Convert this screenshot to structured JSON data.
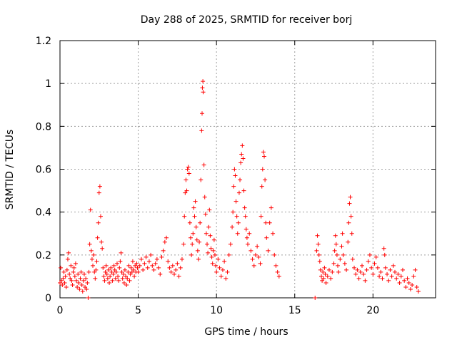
{
  "chart_data": {
    "type": "scatter",
    "title": "Day 288 of 2025, SRMTID for receiver borj",
    "xlabel": "GPS time / hours",
    "ylabel": "SRMTID / TECUs",
    "xlim": [
      0,
      24
    ],
    "ylim": [
      0,
      1.2
    ],
    "x_ticks": [
      0,
      5,
      10,
      15,
      20
    ],
    "x_tick_labels": [
      "0",
      "5",
      "10",
      "15",
      "20"
    ],
    "y_ticks": [
      0,
      0.2,
      0.4,
      0.6,
      0.8,
      1.0,
      1.2
    ],
    "y_tick_labels": [
      "0",
      "0.2",
      "0.4",
      "0.6",
      "0.8",
      "1",
      "1.2"
    ],
    "grid": true,
    "marker": "+",
    "color": "#ff0000",
    "series": [
      {
        "name": "SRMTID",
        "points": [
          [
            0.0,
            0.07
          ],
          [
            0.05,
            0.14
          ],
          [
            0.1,
            0.08
          ],
          [
            0.15,
            0.06
          ],
          [
            0.2,
            0.09
          ],
          [
            0.25,
            0.12
          ],
          [
            0.3,
            0.07
          ],
          [
            0.35,
            0.1
          ],
          [
            0.4,
            0.05
          ],
          [
            0.45,
            0.13
          ],
          [
            0.5,
            0.18
          ],
          [
            0.55,
            0.21
          ],
          [
            0.6,
            0.11
          ],
          [
            0.65,
            0.09
          ],
          [
            0.7,
            0.15
          ],
          [
            0.75,
            0.08
          ],
          [
            0.8,
            0.06
          ],
          [
            0.85,
            0.12
          ],
          [
            0.9,
            0.14
          ],
          [
            0.95,
            0.1
          ],
          [
            1.0,
            0.16
          ],
          [
            1.05,
            0.08
          ],
          [
            1.1,
            0.05
          ],
          [
            1.15,
            0.11
          ],
          [
            1.2,
            0.07
          ],
          [
            1.25,
            0.04
          ],
          [
            1.3,
            0.09
          ],
          [
            1.35,
            0.12
          ],
          [
            1.4,
            0.06
          ],
          [
            1.45,
            0.03
          ],
          [
            1.5,
            0.08
          ],
          [
            1.55,
            0.11
          ],
          [
            1.6,
            0.05
          ],
          [
            1.65,
            0.09
          ],
          [
            1.7,
            0.04
          ],
          [
            1.75,
            0.07
          ],
          [
            1.8,
            0.0
          ],
          [
            1.85,
            0.12
          ],
          [
            1.9,
            0.25
          ],
          [
            1.95,
            0.41
          ],
          [
            2.0,
            0.22
          ],
          [
            2.05,
            0.18
          ],
          [
            2.1,
            0.15
          ],
          [
            2.15,
            0.2
          ],
          [
            2.2,
            0.12
          ],
          [
            2.25,
            0.09
          ],
          [
            2.3,
            0.13
          ],
          [
            2.35,
            0.17
          ],
          [
            2.4,
            0.28
          ],
          [
            2.45,
            0.35
          ],
          [
            2.5,
            0.49
          ],
          [
            2.55,
            0.52
          ],
          [
            2.6,
            0.38
          ],
          [
            2.65,
            0.26
          ],
          [
            2.7,
            0.23
          ],
          [
            2.75,
            0.14
          ],
          [
            2.8,
            0.1
          ],
          [
            2.85,
            0.08
          ],
          [
            2.9,
            0.12
          ],
          [
            2.95,
            0.15
          ],
          [
            3.0,
            0.11
          ],
          [
            3.05,
            0.09
          ],
          [
            3.1,
            0.13
          ],
          [
            3.15,
            0.07
          ],
          [
            3.2,
            0.1
          ],
          [
            3.25,
            0.14
          ],
          [
            3.3,
            0.12
          ],
          [
            3.35,
            0.08
          ],
          [
            3.4,
            0.11
          ],
          [
            3.45,
            0.15
          ],
          [
            3.5,
            0.13
          ],
          [
            3.55,
            0.09
          ],
          [
            3.6,
            0.12
          ],
          [
            3.65,
            0.16
          ],
          [
            3.7,
            0.1
          ],
          [
            3.75,
            0.08
          ],
          [
            3.8,
            0.14
          ],
          [
            3.85,
            0.17
          ],
          [
            3.9,
            0.21
          ],
          [
            3.95,
            0.12
          ],
          [
            4.0,
            0.09
          ],
          [
            4.05,
            0.11
          ],
          [
            4.1,
            0.07
          ],
          [
            4.15,
            0.13
          ],
          [
            4.2,
            0.1
          ],
          [
            4.25,
            0.06
          ],
          [
            4.3,
            0.09
          ],
          [
            4.35,
            0.12
          ],
          [
            4.4,
            0.15
          ],
          [
            4.45,
            0.08
          ],
          [
            4.5,
            0.11
          ],
          [
            4.55,
            0.14
          ],
          [
            4.6,
            0.12
          ],
          [
            4.65,
            0.17
          ],
          [
            4.7,
            0.13
          ],
          [
            4.75,
            0.1
          ],
          [
            4.8,
            0.15
          ],
          [
            4.85,
            0.12
          ],
          [
            4.9,
            0.16
          ],
          [
            4.95,
            0.14
          ],
          [
            5.0,
            0.12
          ],
          [
            5.1,
            0.15
          ],
          [
            5.2,
            0.18
          ],
          [
            5.3,
            0.13
          ],
          [
            5.4,
            0.16
          ],
          [
            5.5,
            0.19
          ],
          [
            5.6,
            0.14
          ],
          [
            5.7,
            0.17
          ],
          [
            5.8,
            0.2
          ],
          [
            5.9,
            0.15
          ],
          [
            6.0,
            0.13
          ],
          [
            6.1,
            0.16
          ],
          [
            6.2,
            0.18
          ],
          [
            6.3,
            0.14
          ],
          [
            6.4,
            0.11
          ],
          [
            6.5,
            0.19
          ],
          [
            6.6,
            0.22
          ],
          [
            6.7,
            0.26
          ],
          [
            6.8,
            0.28
          ],
          [
            6.9,
            0.17
          ],
          [
            7.0,
            0.14
          ],
          [
            7.1,
            0.12
          ],
          [
            7.2,
            0.15
          ],
          [
            7.3,
            0.11
          ],
          [
            7.4,
            0.13
          ],
          [
            7.5,
            0.16
          ],
          [
            7.6,
            0.1
          ],
          [
            7.7,
            0.14
          ],
          [
            7.8,
            0.18
          ],
          [
            7.9,
            0.25
          ],
          [
            7.95,
            0.38
          ],
          [
            8.0,
            0.49
          ],
          [
            8.05,
            0.55
          ],
          [
            8.1,
            0.5
          ],
          [
            8.15,
            0.6
          ],
          [
            8.2,
            0.61
          ],
          [
            8.25,
            0.58
          ],
          [
            8.3,
            0.35
          ],
          [
            8.35,
            0.28
          ],
          [
            8.4,
            0.2
          ],
          [
            8.45,
            0.25
          ],
          [
            8.5,
            0.3
          ],
          [
            8.55,
            0.42
          ],
          [
            8.6,
            0.38
          ],
          [
            8.65,
            0.45
          ],
          [
            8.7,
            0.33
          ],
          [
            8.75,
            0.27
          ],
          [
            8.8,
            0.22
          ],
          [
            8.85,
            0.18
          ],
          [
            8.9,
            0.26
          ],
          [
            8.95,
            0.35
          ],
          [
            9.0,
            0.55
          ],
          [
            9.05,
            0.78
          ],
          [
            9.08,
            0.86
          ],
          [
            9.1,
            0.98
          ],
          [
            9.13,
            1.01
          ],
          [
            9.15,
            0.96
          ],
          [
            9.2,
            0.62
          ],
          [
            9.25,
            0.47
          ],
          [
            9.3,
            0.39
          ],
          [
            9.35,
            0.3
          ],
          [
            9.4,
            0.25
          ],
          [
            9.45,
            0.21
          ],
          [
            9.5,
            0.33
          ],
          [
            9.55,
            0.41
          ],
          [
            9.6,
            0.29
          ],
          [
            9.65,
            0.23
          ],
          [
            9.7,
            0.19
          ],
          [
            9.75,
            0.16
          ],
          [
            9.8,
            0.22
          ],
          [
            9.85,
            0.27
          ],
          [
            9.9,
            0.2
          ],
          [
            9.95,
            0.15
          ],
          [
            10.0,
            0.12
          ],
          [
            10.1,
            0.18
          ],
          [
            10.2,
            0.14
          ],
          [
            10.3,
            0.1
          ],
          [
            10.4,
            0.13
          ],
          [
            10.5,
            0.17
          ],
          [
            10.6,
            0.09
          ],
          [
            10.7,
            0.12
          ],
          [
            10.8,
            0.2
          ],
          [
            10.9,
            0.25
          ],
          [
            11.0,
            0.33
          ],
          [
            11.05,
            0.4
          ],
          [
            11.1,
            0.52
          ],
          [
            11.15,
            0.6
          ],
          [
            11.2,
            0.57
          ],
          [
            11.25,
            0.45
          ],
          [
            11.3,
            0.38
          ],
          [
            11.35,
            0.3
          ],
          [
            11.4,
            0.35
          ],
          [
            11.45,
            0.49
          ],
          [
            11.5,
            0.55
          ],
          [
            11.55,
            0.63
          ],
          [
            11.6,
            0.67
          ],
          [
            11.65,
            0.71
          ],
          [
            11.7,
            0.65
          ],
          [
            11.75,
            0.5
          ],
          [
            11.8,
            0.42
          ],
          [
            11.85,
            0.38
          ],
          [
            11.9,
            0.32
          ],
          [
            11.95,
            0.28
          ],
          [
            12.0,
            0.25
          ],
          [
            12.1,
            0.3
          ],
          [
            12.2,
            0.22
          ],
          [
            12.3,
            0.18
          ],
          [
            12.4,
            0.15
          ],
          [
            12.5,
            0.2
          ],
          [
            12.6,
            0.24
          ],
          [
            12.7,
            0.19
          ],
          [
            12.8,
            0.16
          ],
          [
            12.85,
            0.38
          ],
          [
            12.9,
            0.52
          ],
          [
            12.95,
            0.6
          ],
          [
            13.0,
            0.68
          ],
          [
            13.05,
            0.66
          ],
          [
            13.1,
            0.55
          ],
          [
            13.15,
            0.35
          ],
          [
            13.2,
            0.28
          ],
          [
            13.3,
            0.22
          ],
          [
            13.4,
            0.35
          ],
          [
            13.5,
            0.42
          ],
          [
            13.6,
            0.3
          ],
          [
            13.7,
            0.2
          ],
          [
            13.8,
            0.15
          ],
          [
            13.9,
            0.12
          ],
          [
            14.0,
            0.1
          ],
          [
            16.3,
            0.0
          ],
          [
            16.4,
            0.22
          ],
          [
            16.45,
            0.29
          ],
          [
            16.5,
            0.25
          ],
          [
            16.55,
            0.2
          ],
          [
            16.6,
            0.17
          ],
          [
            16.65,
            0.13
          ],
          [
            16.7,
            0.1
          ],
          [
            16.75,
            0.08
          ],
          [
            16.8,
            0.12
          ],
          [
            16.85,
            0.09
          ],
          [
            16.9,
            0.14
          ],
          [
            16.95,
            0.11
          ],
          [
            17.0,
            0.07
          ],
          [
            17.1,
            0.1
          ],
          [
            17.2,
            0.13
          ],
          [
            17.3,
            0.09
          ],
          [
            17.4,
            0.12
          ],
          [
            17.5,
            0.16
          ],
          [
            17.55,
            0.22
          ],
          [
            17.6,
            0.29
          ],
          [
            17.65,
            0.25
          ],
          [
            17.7,
            0.2
          ],
          [
            17.75,
            0.15
          ],
          [
            17.8,
            0.12
          ],
          [
            17.9,
            0.18
          ],
          [
            18.0,
            0.24
          ],
          [
            18.05,
            0.3
          ],
          [
            18.1,
            0.2
          ],
          [
            18.2,
            0.16
          ],
          [
            18.3,
            0.13
          ],
          [
            18.4,
            0.26
          ],
          [
            18.45,
            0.35
          ],
          [
            18.5,
            0.44
          ],
          [
            18.55,
            0.47
          ],
          [
            18.6,
            0.38
          ],
          [
            18.65,
            0.3
          ],
          [
            18.7,
            0.18
          ],
          [
            18.8,
            0.14
          ],
          [
            18.9,
            0.11
          ],
          [
            19.0,
            0.13
          ],
          [
            19.1,
            0.09
          ],
          [
            19.2,
            0.12
          ],
          [
            19.3,
            0.15
          ],
          [
            19.4,
            0.11
          ],
          [
            19.5,
            0.08
          ],
          [
            19.6,
            0.13
          ],
          [
            19.7,
            0.17
          ],
          [
            19.8,
            0.2
          ],
          [
            19.9,
            0.14
          ],
          [
            20.0,
            0.11
          ],
          [
            20.1,
            0.16
          ],
          [
            20.2,
            0.19
          ],
          [
            20.3,
            0.14
          ],
          [
            20.4,
            0.1
          ],
          [
            20.5,
            0.12
          ],
          [
            20.6,
            0.09
          ],
          [
            20.7,
            0.23
          ],
          [
            20.75,
            0.2
          ],
          [
            20.8,
            0.14
          ],
          [
            20.9,
            0.11
          ],
          [
            21.0,
            0.08
          ],
          [
            21.1,
            0.13
          ],
          [
            21.2,
            0.1
          ],
          [
            21.3,
            0.15
          ],
          [
            21.4,
            0.12
          ],
          [
            21.5,
            0.09
          ],
          [
            21.6,
            0.11
          ],
          [
            21.7,
            0.07
          ],
          [
            21.8,
            0.1
          ],
          [
            21.9,
            0.13
          ],
          [
            22.0,
            0.08
          ],
          [
            22.1,
            0.05
          ],
          [
            22.2,
            0.09
          ],
          [
            22.3,
            0.07
          ],
          [
            22.4,
            0.04
          ],
          [
            22.5,
            0.06
          ],
          [
            22.6,
            0.1
          ],
          [
            22.7,
            0.13
          ],
          [
            22.8,
            0.05
          ],
          [
            22.9,
            0.03
          ]
        ]
      }
    ]
  }
}
